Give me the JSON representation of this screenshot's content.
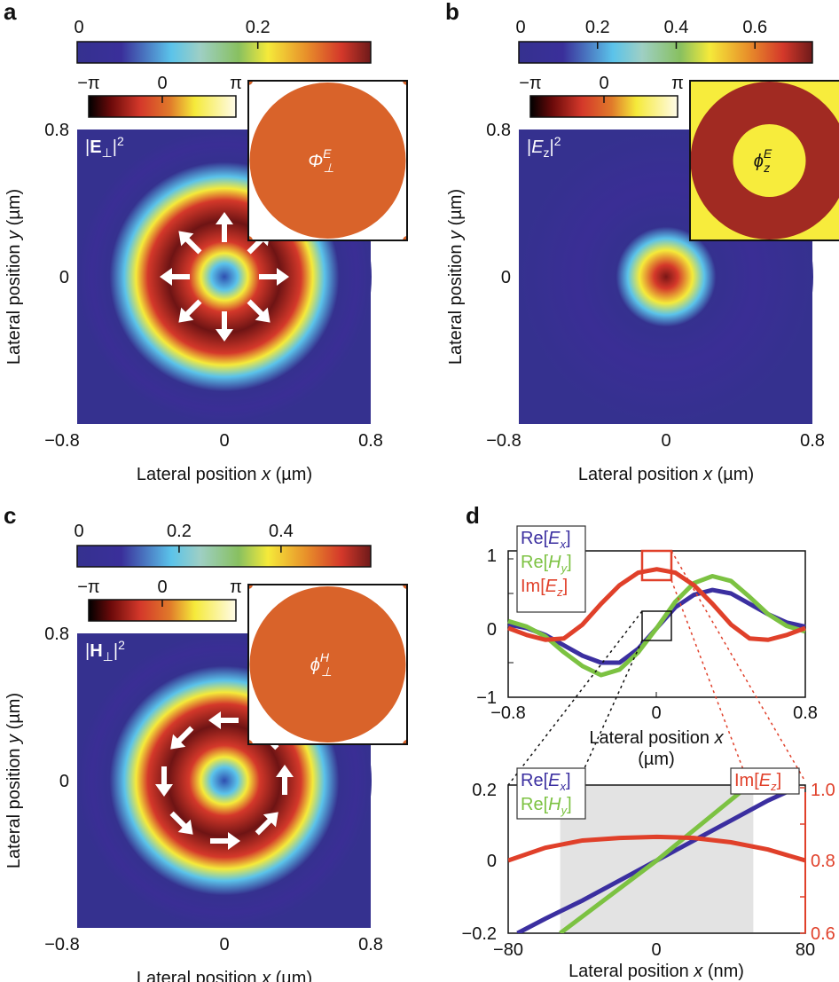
{
  "colors": {
    "ex": "#3b2fa0",
    "hy": "#7cc242",
    "ez": "#e0402a",
    "heatmap_background": "#35318f",
    "inset_orange": "#d9632a",
    "inset_darkred": "#a12a22",
    "inset_yellow": "#f7ec3c",
    "zoom_region_fill": "#e3e3e3"
  },
  "chart_data": [
    {
      "type": "heatmap",
      "panel_label": "a",
      "field_label": {
        "pre": "|",
        "main": "E",
        "sub": "⊥",
        "post": "|",
        "power": "2",
        "bold": true
      },
      "colorbar": {
        "min": 0,
        "max": 0.325,
        "ticks": [
          0,
          0.2
        ],
        "tick_labels": [
          "0",
          "0.2"
        ]
      },
      "phase_colorbar": {
        "tick_labels": [
          "−π",
          "0",
          "π"
        ]
      },
      "inset": {
        "label_main": "Φ",
        "label_sup": "E",
        "label_sub": "⊥",
        "pattern": "uniform",
        "background": "#ffffff"
      },
      "arrows": "radial",
      "xticks": [
        "−0.8",
        "0",
        "0.8"
      ],
      "yticks": [
        "0.8",
        "0"
      ],
      "xlabel": {
        "pre": "Lateral position ",
        "var": "x",
        "post": " (µm)"
      },
      "ylabel": {
        "pre": "Lateral position ",
        "var": "y",
        "post": " (µm)"
      },
      "xlim": [
        -0.8,
        0.8
      ],
      "ylim": [
        -0.8,
        0.8
      ],
      "profile": "ring"
    },
    {
      "type": "heatmap",
      "panel_label": "b",
      "field_label": {
        "pre": "|",
        "main": "E",
        "sub": "z",
        "post": "|",
        "power": "2",
        "bold": false
      },
      "colorbar": {
        "min": 0,
        "max": 0.746,
        "ticks": [
          0,
          0.2,
          0.4,
          0.6
        ],
        "tick_labels": [
          "0",
          "0.2",
          "0.4",
          "0.6"
        ]
      },
      "phase_colorbar": {
        "tick_labels": [
          "−π",
          "0",
          "π"
        ]
      },
      "inset": {
        "label_main": "ϕ",
        "label_sup": "E",
        "label_sub": "z",
        "pattern": "rings",
        "background": "#f7ec3c"
      },
      "arrows": "none",
      "xticks": [
        "−0.8",
        "0",
        "0.8"
      ],
      "yticks": [
        "0.8",
        "0"
      ],
      "xlabel": {
        "pre": "Lateral position ",
        "var": "x",
        "post": " (µm)"
      },
      "ylabel": {
        "pre": "Lateral position ",
        "var": "y",
        "post": " (µm)"
      },
      "xlim": [
        -0.8,
        0.8
      ],
      "ylim": [
        -0.8,
        0.8
      ],
      "profile": "spot"
    },
    {
      "type": "heatmap",
      "panel_label": "c",
      "field_label": {
        "pre": "|",
        "main": "H",
        "sub": "⊥",
        "post": "|",
        "power": "2",
        "bold": true
      },
      "colorbar": {
        "min": 0,
        "max": 0.576,
        "ticks": [
          0,
          0.2,
          0.4
        ],
        "tick_labels": [
          "0",
          "0.2",
          "0.4"
        ]
      },
      "phase_colorbar": {
        "tick_labels": [
          "−π",
          "0",
          "π"
        ]
      },
      "inset": {
        "label_main": "ϕ",
        "label_sup": "H",
        "label_sub": "⊥",
        "pattern": "uniform",
        "background": "#ffffff"
      },
      "arrows": "azimuthal",
      "xticks": [
        "−0.8",
        "0",
        "0.8"
      ],
      "yticks": [
        "0.8",
        "0"
      ],
      "xlabel": {
        "pre": "Lateral position ",
        "var": "x",
        "post": " (µm)"
      },
      "ylabel": {
        "pre": "Lateral position ",
        "var": "y",
        "post": " (µm)"
      },
      "xlim": [
        -0.8,
        0.8
      ],
      "ylim": [
        -0.8,
        0.8
      ],
      "profile": "ring"
    },
    {
      "type": "line",
      "panel_label": "d",
      "x": [
        -0.8,
        -0.7,
        -0.6,
        -0.5,
        -0.4,
        -0.3,
        -0.2,
        -0.1,
        0,
        0.1,
        0.2,
        0.3,
        0.4,
        0.5,
        0.6,
        0.7,
        0.8
      ],
      "series": [
        {
          "name": {
            "pre": "Re[",
            "var": "E",
            "sub": "x",
            "post": "]"
          },
          "color": "#3b2fa0",
          "values": [
            0.05,
            0.0,
            -0.1,
            -0.25,
            -0.4,
            -0.5,
            -0.5,
            -0.3,
            0,
            0.3,
            0.48,
            0.55,
            0.5,
            0.35,
            0.2,
            0.08,
            0.02
          ]
        },
        {
          "name": {
            "pre": "Re[",
            "var": "H",
            "sub": "y",
            "post": "]"
          },
          "color": "#7cc242",
          "values": [
            0.1,
            0.02,
            -0.12,
            -0.35,
            -0.55,
            -0.68,
            -0.6,
            -0.35,
            0,
            0.38,
            0.65,
            0.75,
            0.68,
            0.45,
            0.2,
            0.03,
            -0.05
          ]
        },
        {
          "name": {
            "pre": "Im[",
            "var": "E",
            "sub": "z",
            "post": "]"
          },
          "color": "#e0402a",
          "values": [
            0,
            -0.1,
            -0.17,
            -0.15,
            0.05,
            0.35,
            0.62,
            0.8,
            0.85,
            0.8,
            0.62,
            0.35,
            0.05,
            -0.15,
            -0.17,
            -0.1,
            0
          ]
        }
      ],
      "xlim": [
        -0.8,
        0.8
      ],
      "ylim": [
        -1,
        1.12
      ],
      "xticks": [
        "−0.8",
        "0",
        "0.8"
      ],
      "yticks": [
        "1",
        "0",
        "−1"
      ],
      "xlabel": {
        "pre": "Lateral position ",
        "var": "x",
        "post": "(µm)"
      },
      "legend": "top-left"
    },
    {
      "type": "line",
      "x_unit": "nm",
      "series": [
        {
          "name": {
            "pre": "Re[",
            "var": "E",
            "sub": "x",
            "post": "]"
          },
          "color": "#3b2fa0",
          "axis": "left",
          "x": [
            -75,
            -60,
            -40,
            -20,
            0,
            20,
            40,
            60,
            75
          ],
          "values": [
            -0.2,
            -0.16,
            -0.11,
            -0.055,
            0,
            0.055,
            0.11,
            0.165,
            0.2
          ]
        },
        {
          "name": {
            "pre": "Re[",
            "var": "H",
            "sub": "y",
            "post": "]"
          },
          "color": "#7cc242",
          "axis": "left",
          "x": [
            -52,
            0,
            48
          ],
          "values": [
            -0.2,
            0,
            0.2
          ]
        },
        {
          "name": {
            "pre": "Im[",
            "var": "E",
            "sub": "z",
            "post": "]"
          },
          "color": "#e0402a",
          "axis": "right",
          "x": [
            -80,
            -60,
            -40,
            -20,
            0,
            20,
            40,
            60,
            80
          ],
          "values": [
            0.8,
            0.835,
            0.855,
            0.862,
            0.865,
            0.862,
            0.85,
            0.83,
            0.8
          ]
        }
      ],
      "shaded_region": [
        -52,
        52
      ],
      "xlim": [
        -80,
        80
      ],
      "ylim": [
        -0.2,
        0.2
      ],
      "y2lim": [
        0.6,
        1.0
      ],
      "xticks": [
        "−80",
        "0",
        "80"
      ],
      "yticks": [
        "0.2",
        "0",
        "−0.2"
      ],
      "y2ticks": [
        "1.0",
        "0.8",
        "0.6"
      ],
      "xlabel": {
        "pre": "Lateral position ",
        "var": "x",
        "post": " (nm)"
      },
      "legend": "top-left and top-right"
    }
  ]
}
